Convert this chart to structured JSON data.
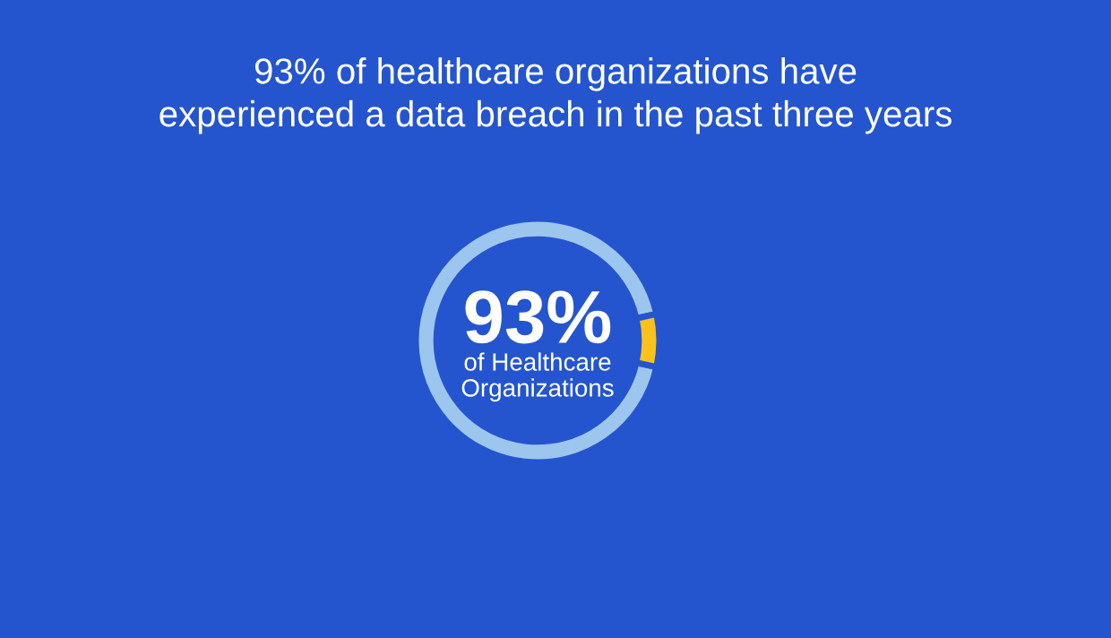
{
  "chart_data": {
    "type": "donut",
    "title": "93% of healthcare organizations have\nexperienced a data breach in the past three years",
    "categories": [
      null,
      null
    ],
    "values": [
      93,
      7
    ],
    "colors": [
      "#9cc6ee",
      "#fcc21b"
    ],
    "annotations": [
      "93%",
      "of Healthcare\nOrganizations"
    ]
  }
}
